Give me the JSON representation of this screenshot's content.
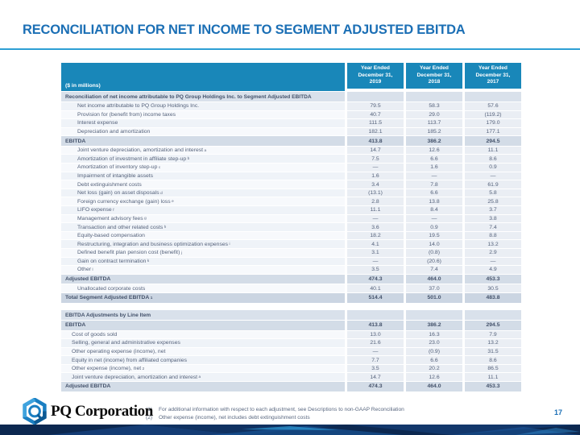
{
  "slide": {
    "title": "RECONCILIATION FOR NET INCOME TO SEGMENT ADJUSTED EBITDA",
    "page_number": "17",
    "logo_text": "PQ Corporation",
    "footnotes": [
      {
        "marker": "(1)",
        "text": "For additional information with respect to each adjustment, see Descriptions to non-GAAP Reconciliation"
      },
      {
        "marker": "(2)",
        "text": "Other expense (income), net includes debt extinguishment costs"
      }
    ]
  },
  "colors": {
    "title_blue": "#1B6FB5",
    "header_teal": "#1987B9",
    "rule_blue": "#2E9FD4",
    "section_row": "#D9E1EB",
    "total_row": "#D3DCE7",
    "grand_total_row": "#CBD5E2",
    "numeric_cell": "#EAEEF4",
    "footer_navy": "#0C2850"
  },
  "table_header": {
    "unit_label": "($ in millions)",
    "columns": [
      [
        "Year Ended",
        "December 31,",
        "2019"
      ],
      [
        "Year Ended",
        "December 31,",
        "2018"
      ],
      [
        "Year Ended",
        "December 31,",
        "2017"
      ]
    ]
  },
  "tables": [
    {
      "rows": [
        {
          "label": "Reconciliation of net income attributable to PQ Group Holdings Inc. to Segment Adjusted EBITDA",
          "style": "section",
          "indent": 0,
          "values": [
            "",
            "",
            ""
          ]
        },
        {
          "label": "Net income attributable to PQ Group Holdings Inc.",
          "style": "item",
          "indent": 2,
          "values": [
            "79.5",
            "58.3",
            "57.6"
          ]
        },
        {
          "label": "Provision for (benefit from) income taxes",
          "style": "item",
          "indent": 2,
          "values": [
            "40.7",
            "29.0",
            "(119.2)"
          ]
        },
        {
          "label": "Interest expense",
          "style": "item",
          "indent": 2,
          "values": [
            "111.5",
            "113.7",
            "179.0"
          ]
        },
        {
          "label": "Depreciation and amortization",
          "style": "item",
          "indent": 2,
          "values": [
            "182.1",
            "185.2",
            "177.1"
          ]
        },
        {
          "label": "EBITDA",
          "style": "total",
          "indent": 0,
          "values": [
            "413.8",
            "386.2",
            "294.5"
          ]
        },
        {
          "label": "Joint venture depreciation, amortization and interest",
          "sup": "a",
          "style": "item",
          "indent": 2,
          "values": [
            "14.7",
            "12.6",
            "11.1"
          ]
        },
        {
          "label": "Amortization of investment in affiliate step-up",
          "sup": "b",
          "style": "item",
          "indent": 2,
          "values": [
            "7.5",
            "6.6",
            "8.6"
          ]
        },
        {
          "label": "Amortization of inventory step-up",
          "sup": "c",
          "style": "item",
          "indent": 2,
          "values": [
            "—",
            "1.6",
            "0.9"
          ]
        },
        {
          "label": "Impairment of intangible assets",
          "style": "item",
          "indent": 2,
          "values": [
            "1.6",
            "—",
            "—"
          ]
        },
        {
          "label": "Debt extinguishment costs",
          "style": "item",
          "indent": 2,
          "values": [
            "3.4",
            "7.8",
            "61.9"
          ]
        },
        {
          "label": "Net loss (gain) on asset disposals",
          "sup": "d",
          "style": "item",
          "indent": 2,
          "values": [
            "(13.1)",
            "6.6",
            "5.8"
          ]
        },
        {
          "label": "Foreign currency exchange (gain) loss",
          "sup": "e",
          "style": "item",
          "indent": 2,
          "values": [
            "2.8",
            "13.8",
            "25.8"
          ]
        },
        {
          "label": "LIFO expense",
          "sup": "f",
          "style": "item",
          "indent": 2,
          "values": [
            "11.1",
            "8.4",
            "3.7"
          ]
        },
        {
          "label": "Management advisory fees",
          "sup": "g",
          "style": "item",
          "indent": 2,
          "values": [
            "—",
            "—",
            "3.8"
          ]
        },
        {
          "label": "Transaction and other related costs",
          "sup": "h",
          "style": "item",
          "indent": 2,
          "values": [
            "3.6",
            "0.9",
            "7.4"
          ]
        },
        {
          "label": "Equity-based compensation",
          "style": "item",
          "indent": 2,
          "values": [
            "18.2",
            "19.5",
            "8.8"
          ]
        },
        {
          "label": "Restructuring, integration and business optimization expenses",
          "sup": "i",
          "style": "item",
          "indent": 2,
          "values": [
            "4.1",
            "14.0",
            "13.2"
          ]
        },
        {
          "label": "Defined benefit plan pension cost (benefit)",
          "sup": "j",
          "style": "item",
          "indent": 2,
          "values": [
            "3.1",
            "(0.8)",
            "2.9"
          ]
        },
        {
          "label": "Gain on contract termination",
          "sup": "k",
          "style": "item",
          "indent": 2,
          "values": [
            "—",
            "(20.6)",
            "—"
          ]
        },
        {
          "label": "Other",
          "sup": "l",
          "style": "item",
          "indent": 2,
          "values": [
            "3.5",
            "7.4",
            "4.9"
          ]
        },
        {
          "label": "Adjusted EBITDA",
          "style": "total",
          "indent": 0,
          "values": [
            "474.3",
            "464.0",
            "453.3"
          ]
        },
        {
          "label": "Unallocated corporate costs",
          "style": "item",
          "indent": 2,
          "values": [
            "40.1",
            "37.0",
            "30.5"
          ]
        },
        {
          "label": "Total Segment Adjusted EBITDA",
          "sup": "1",
          "style": "grandtotal",
          "indent": 0,
          "values": [
            "514.4",
            "501.0",
            "483.8"
          ]
        }
      ]
    },
    {
      "rows": [
        {
          "label": "EBITDA Adjustments by Line Item",
          "style": "section",
          "indent": 0,
          "values": [
            "",
            "",
            ""
          ]
        },
        {
          "label": "EBITDA",
          "style": "total",
          "indent": 0,
          "values": [
            "413.8",
            "386.2",
            "294.5"
          ]
        },
        {
          "label": "Cost of goods sold",
          "style": "item",
          "indent": 1,
          "values": [
            "13.0",
            "16.3",
            "7.9"
          ]
        },
        {
          "label": "Selling, general and administrative expenses",
          "style": "item",
          "indent": 1,
          "values": [
            "21.6",
            "23.0",
            "13.2"
          ]
        },
        {
          "label": "Other operating expense (income), net",
          "style": "item",
          "indent": 1,
          "values": [
            "—",
            "(0.9)",
            "31.5"
          ]
        },
        {
          "label": "Equity in net (income) from affiliated companies",
          "style": "item",
          "indent": 1,
          "values": [
            "7.7",
            "6.6",
            "8.6"
          ]
        },
        {
          "label": "Other expense (income), net",
          "sup": "2",
          "style": "item",
          "indent": 1,
          "values": [
            "3.5",
            "20.2",
            "86.5"
          ]
        },
        {
          "label": "Joint venture depreciation, amortization and interest",
          "sup": "a",
          "style": "item",
          "indent": 1,
          "values": [
            "14.7",
            "12.6",
            "11.1"
          ]
        },
        {
          "label": "Adjusted EBITDA",
          "style": "total",
          "indent": 0,
          "values": [
            "474.3",
            "464.0",
            "453.3"
          ]
        }
      ]
    }
  ]
}
